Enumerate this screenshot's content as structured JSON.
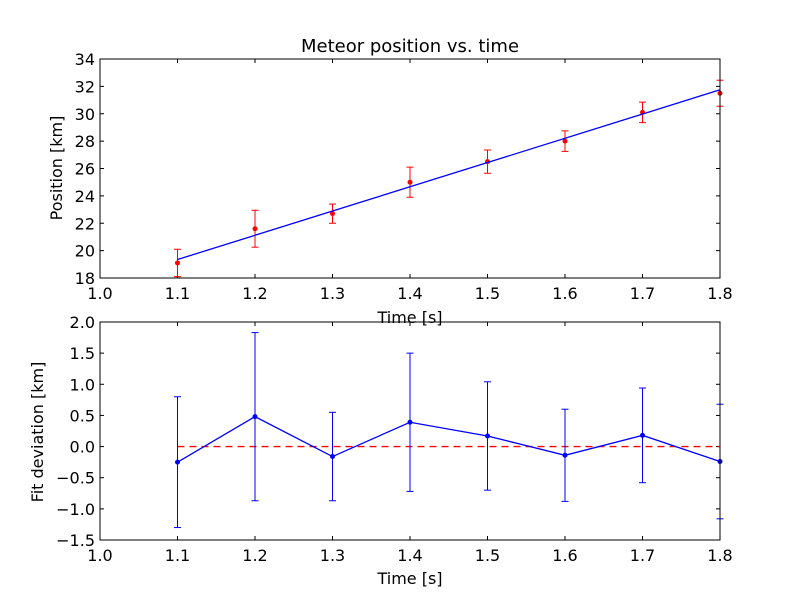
{
  "chart_data": [
    {
      "type": "scatter",
      "title": "Meteor position vs. time",
      "xlabel": "Time [s]",
      "ylabel": "Position [km]",
      "xlim": [
        1.0,
        1.8
      ],
      "ylim": [
        18,
        34
      ],
      "xticks": [
        "1.0",
        "1.1",
        "1.2",
        "1.3",
        "1.4",
        "1.5",
        "1.6",
        "1.7",
        "1.8"
      ],
      "yticks": [
        "18",
        "20",
        "22",
        "24",
        "26",
        "28",
        "30",
        "32",
        "34"
      ],
      "grid": false,
      "series": [
        {
          "kind": "errorbar",
          "color": "#ff0000",
          "x": [
            1.1,
            1.2,
            1.3,
            1.4,
            1.5,
            1.6,
            1.7,
            1.8
          ],
          "y": [
            19.1,
            21.6,
            22.7,
            25.0,
            26.5,
            28.0,
            30.1,
            31.5
          ],
          "yerr": [
            1.0,
            1.35,
            0.7,
            1.1,
            0.85,
            0.75,
            0.75,
            0.95
          ]
        },
        {
          "kind": "line",
          "color": "#0000ff",
          "x": [
            1.1,
            1.8
          ],
          "y": [
            19.35,
            31.75
          ]
        }
      ]
    },
    {
      "type": "line",
      "title": "",
      "xlabel": "Time [s]",
      "ylabel": "Fit deviation [km]",
      "xlim": [
        1.0,
        1.8
      ],
      "ylim": [
        -1.5,
        2.0
      ],
      "xticks": [
        "1.0",
        "1.1",
        "1.2",
        "1.3",
        "1.4",
        "1.5",
        "1.6",
        "1.7",
        "1.8"
      ],
      "yticks": [
        "−1.5",
        "−1.0",
        "−0.5",
        "0.0",
        "0.5",
        "1.0",
        "1.5",
        "2.0"
      ],
      "grid": false,
      "reference_line": {
        "y": 0.0,
        "color": "#ff0000",
        "style": "dashed"
      },
      "series": [
        {
          "kind": "errorbar",
          "color": "#0000ff",
          "x": [
            1.1,
            1.2,
            1.3,
            1.4,
            1.5,
            1.6,
            1.7,
            1.8
          ],
          "y": [
            -0.25,
            0.48,
            -0.16,
            0.39,
            0.17,
            -0.14,
            0.18,
            -0.24
          ],
          "yerr": [
            1.05,
            1.35,
            0.71,
            1.11,
            0.87,
            0.74,
            0.76,
            0.92
          ]
        }
      ]
    }
  ]
}
